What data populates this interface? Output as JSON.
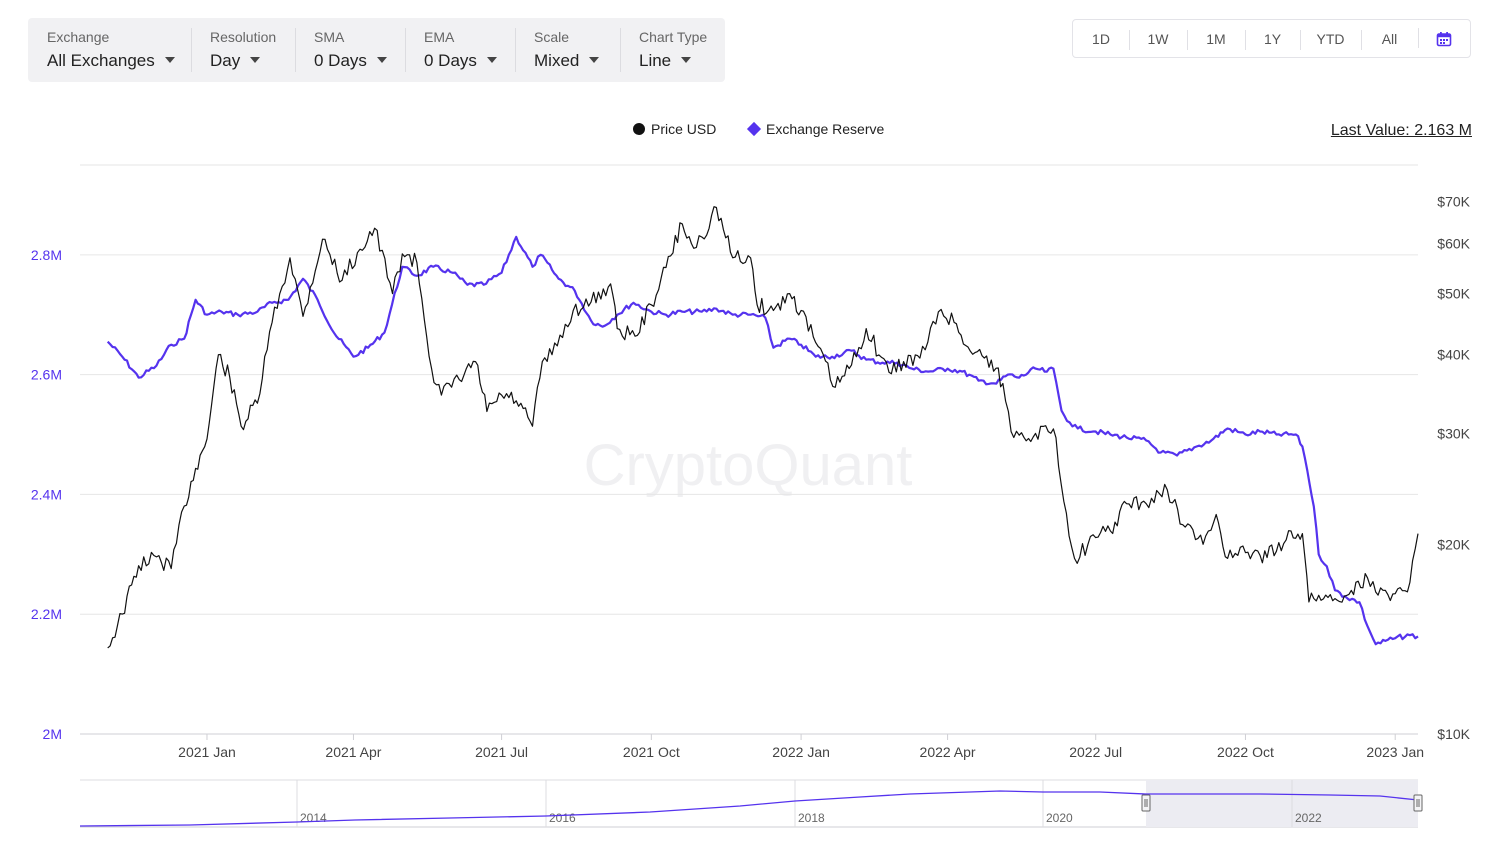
{
  "toolbar": [
    {
      "label": "Exchange",
      "value": "All Exchanges"
    },
    {
      "label": "Resolution",
      "value": "Day"
    },
    {
      "label": "SMA",
      "value": "0 Days"
    },
    {
      "label": "EMA",
      "value": "0 Days"
    },
    {
      "label": "Scale",
      "value": "Mixed"
    },
    {
      "label": "Chart Type",
      "value": "Line"
    }
  ],
  "ranges": [
    "1D",
    "1W",
    "1M",
    "1Y",
    "YTD",
    "All"
  ],
  "calendar_icon": "calendar-icon",
  "legend": {
    "price": "Price USD",
    "reserve": "Exchange Reserve"
  },
  "last_value": "Last Value: 2.163 M",
  "watermark": "CryptoQuant",
  "colors": {
    "price": "#111111",
    "reserve": "#5533ee",
    "grid": "#e6e6e6"
  },
  "chart_data": {
    "type": "line",
    "x_ticks": [
      "2021 Jan",
      "2021 Apr",
      "2021 Jul",
      "2021 Oct",
      "2022 Jan",
      "2022 Apr",
      "2022 Jul",
      "2022 Oct",
      "2023 Jan"
    ],
    "y_left_ticks": [
      "2M",
      "2.2M",
      "2.4M",
      "2.6M",
      "2.8M"
    ],
    "y_right_ticks": [
      "$10K",
      "$20K",
      "$30K",
      "$40K",
      "$50K",
      "$60K",
      "$70K"
    ],
    "y_left_range": [
      2000000,
      2950000
    ],
    "y_right_range": [
      10000,
      80000
    ],
    "y_right_scale": "log",
    "series": [
      {
        "name": "Exchange Reserve",
        "axis": "left",
        "x": [
          "2020-11-01",
          "2020-11-10",
          "2020-11-20",
          "2020-12-01",
          "2020-12-10",
          "2020-12-18",
          "2020-12-25",
          "2021-01-01",
          "2021-01-10",
          "2021-01-20",
          "2021-02-01",
          "2021-02-10",
          "2021-02-20",
          "2021-03-01",
          "2021-03-10",
          "2021-03-20",
          "2021-04-01",
          "2021-04-10",
          "2021-04-20",
          "2021-05-01",
          "2021-05-10",
          "2021-05-20",
          "2021-06-01",
          "2021-06-10",
          "2021-06-20",
          "2021-07-01",
          "2021-07-10",
          "2021-07-20",
          "2021-07-25",
          "2021-08-01",
          "2021-08-05",
          "2021-08-15",
          "2021-08-25",
          "2021-09-01",
          "2021-09-10",
          "2021-09-20",
          "2021-10-01",
          "2021-10-10",
          "2021-10-20",
          "2021-11-01",
          "2021-11-10",
          "2021-11-20",
          "2021-12-01",
          "2021-12-10",
          "2021-12-15",
          "2021-12-25",
          "2022-01-01",
          "2022-01-10",
          "2022-01-20",
          "2022-02-01",
          "2022-02-10",
          "2022-02-20",
          "2022-03-01",
          "2022-03-10",
          "2022-03-20",
          "2022-04-01",
          "2022-04-10",
          "2022-04-20",
          "2022-05-01",
          "2022-05-08",
          "2022-05-15",
          "2022-05-25",
          "2022-06-01",
          "2022-06-05",
          "2022-06-10",
          "2022-06-15",
          "2022-06-20",
          "2022-07-01",
          "2022-07-10",
          "2022-07-20",
          "2022-08-01",
          "2022-08-10",
          "2022-08-20",
          "2022-09-01",
          "2022-09-10",
          "2022-09-20",
          "2022-10-01",
          "2022-10-10",
          "2022-10-20",
          "2022-11-01",
          "2022-11-05",
          "2022-11-08",
          "2022-11-12",
          "2022-11-15",
          "2022-11-20",
          "2022-11-25",
          "2022-12-01",
          "2022-12-10",
          "2022-12-15",
          "2022-12-20",
          "2023-01-01",
          "2023-01-10",
          "2023-01-15"
        ],
        "values": [
          2655000,
          2630000,
          2595000,
          2615000,
          2650000,
          2660000,
          2725000,
          2700000,
          2705000,
          2700000,
          2705000,
          2720000,
          2725000,
          2760000,
          2725000,
          2670000,
          2630000,
          2645000,
          2670000,
          2780000,
          2765000,
          2780000,
          2770000,
          2750000,
          2750000,
          2770000,
          2830000,
          2780000,
          2800000,
          2775000,
          2760000,
          2740000,
          2690000,
          2680000,
          2700000,
          2720000,
          2705000,
          2700000,
          2705000,
          2705000,
          2710000,
          2700000,
          2700000,
          2695000,
          2645000,
          2660000,
          2650000,
          2630000,
          2630000,
          2640000,
          2625000,
          2620000,
          2620000,
          2610000,
          2605000,
          2610000,
          2605000,
          2590000,
          2585000,
          2600000,
          2595000,
          2610000,
          2605000,
          2610000,
          2540000,
          2520000,
          2510000,
          2505000,
          2500000,
          2495000,
          2490000,
          2470000,
          2465000,
          2480000,
          2490000,
          2510000,
          2500000,
          2505000,
          2500000,
          2500000,
          2480000,
          2440000,
          2380000,
          2300000,
          2280000,
          2240000,
          2230000,
          2220000,
          2180000,
          2150000,
          2160000,
          2165000,
          2163000
        ]
      },
      {
        "name": "Price USD",
        "axis": "right",
        "x": [
          "2020-11-01",
          "2020-11-10",
          "2020-11-20",
          "2020-12-01",
          "2020-12-10",
          "2020-12-18",
          "2020-12-25",
          "2021-01-01",
          "2021-01-08",
          "2021-01-15",
          "2021-01-22",
          "2021-02-01",
          "2021-02-10",
          "2021-02-21",
          "2021-03-01",
          "2021-03-13",
          "2021-03-25",
          "2021-04-05",
          "2021-04-14",
          "2021-04-25",
          "2021-05-01",
          "2021-05-10",
          "2021-05-19",
          "2021-05-25",
          "2021-06-05",
          "2021-06-15",
          "2021-06-22",
          "2021-07-01",
          "2021-07-10",
          "2021-07-20",
          "2021-07-26",
          "2021-08-01",
          "2021-08-14",
          "2021-08-25",
          "2021-09-06",
          "2021-09-10",
          "2021-09-21",
          "2021-10-01",
          "2021-10-10",
          "2021-10-20",
          "2021-10-27",
          "2021-11-01",
          "2021-11-10",
          "2021-11-20",
          "2021-12-01",
          "2021-12-05",
          "2021-12-15",
          "2021-12-25",
          "2022-01-01",
          "2022-01-10",
          "2022-01-22",
          "2022-02-01",
          "2022-02-10",
          "2022-02-24",
          "2022-03-05",
          "2022-03-15",
          "2022-03-28",
          "2022-04-05",
          "2022-04-15",
          "2022-04-25",
          "2022-05-05",
          "2022-05-10",
          "2022-05-15",
          "2022-05-25",
          "2022-06-05",
          "2022-06-13",
          "2022-06-18",
          "2022-07-01",
          "2022-07-10",
          "2022-07-20",
          "2022-08-01",
          "2022-08-14",
          "2022-08-25",
          "2022-09-05",
          "2022-09-13",
          "2022-09-20",
          "2022-10-01",
          "2022-10-10",
          "2022-10-20",
          "2022-10-29",
          "2022-11-05",
          "2022-11-09",
          "2022-11-15",
          "2022-11-25",
          "2022-12-05",
          "2022-12-15",
          "2022-12-20",
          "2023-01-01",
          "2023-01-10",
          "2023-01-15"
        ],
        "values": [
          13700,
          15500,
          18500,
          19100,
          18300,
          23000,
          26400,
          29400,
          40000,
          36800,
          30800,
          33500,
          45000,
          57000,
          46000,
          61000,
          52500,
          58800,
          63500,
          50000,
          57800,
          56000,
          38000,
          34500,
          36500,
          39000,
          32500,
          34500,
          33800,
          30800,
          39000,
          40000,
          47000,
          48500,
          51800,
          44000,
          42800,
          48000,
          55000,
          64500,
          59000,
          61500,
          68500,
          57000,
          57000,
          48000,
          47000,
          50000,
          47000,
          41800,
          35500,
          38500,
          44000,
          37500,
          39000,
          39500,
          47200,
          45000,
          40500,
          39800,
          36000,
          30200,
          29800,
          30000,
          30500,
          22400,
          19000,
          20500,
          21000,
          23200,
          23200,
          24400,
          21300,
          20000,
          22300,
          19000,
          19400,
          19200,
          19500,
          21000,
          20800,
          16200,
          16600,
          16400,
          16900,
          17700,
          16800,
          16700,
          17400,
          20800
        ]
      }
    ],
    "navigator": {
      "x_ticks": [
        "2014",
        "2016",
        "2018",
        "2020",
        "2022"
      ]
    }
  }
}
